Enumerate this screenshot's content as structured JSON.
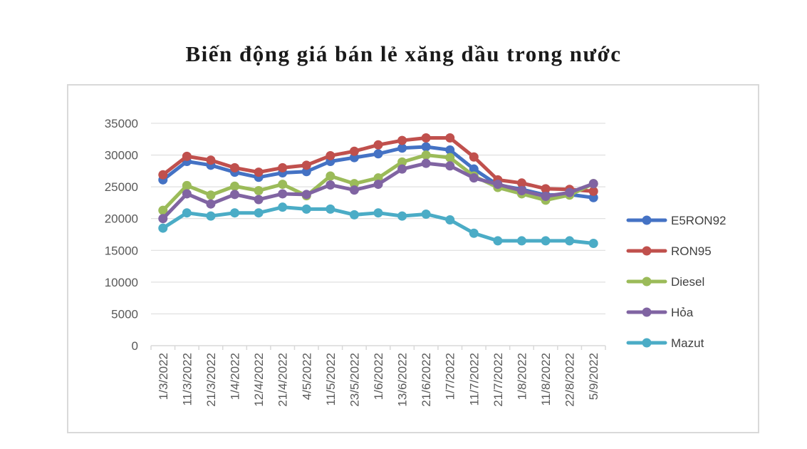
{
  "chart_data": {
    "type": "line",
    "title": "Biến động giá bán lẻ xăng dầu trong nước",
    "xlabel": "",
    "ylabel": "",
    "ylim": [
      0,
      35000
    ],
    "yticks": [
      0,
      5000,
      10000,
      15000,
      20000,
      25000,
      30000,
      35000
    ],
    "grid": true,
    "legend_position": "right",
    "categories": [
      "1/3/2022",
      "11/3/2022",
      "21/3/2022",
      "1/4/2022",
      "12/4/2022",
      "21/4/2022",
      "4/5/2022",
      "11/5/2022",
      "23/5/2022",
      "1/6/2022",
      "13/6/2022",
      "21/6/2022",
      "1/7/2022",
      "11/7/2022",
      "21/7/2022",
      "1/8/2022",
      "11/8/2022",
      "22/8/2022",
      "5/9/2022"
    ],
    "series": [
      {
        "name": "E5RON92",
        "color": "#4472c4",
        "values": [
          26100,
          29000,
          28400,
          27300,
          26500,
          27200,
          27400,
          29000,
          29600,
          30200,
          31100,
          31300,
          30800,
          27800,
          25300,
          24600,
          23700,
          23800,
          23300
        ]
      },
      {
        "name": "RON95",
        "color": "#c0504d",
        "values": [
          26900,
          29800,
          29200,
          28000,
          27300,
          28000,
          28400,
          29900,
          30600,
          31600,
          32300,
          32700,
          32700,
          29700,
          26100,
          25600,
          24700,
          24600,
          24300
        ]
      },
      {
        "name": "Diesel",
        "color": "#9bbb59",
        "values": [
          21300,
          25200,
          23700,
          25100,
          24400,
          25400,
          23600,
          26700,
          25500,
          26400,
          28900,
          30000,
          29600,
          26700,
          24900,
          23900,
          22900,
          23700,
          25500
        ]
      },
      {
        "name": "Hỏa",
        "color": "#8064a2",
        "values": [
          20000,
          23900,
          22300,
          23800,
          23000,
          23900,
          23800,
          25300,
          24500,
          25400,
          27800,
          28700,
          28300,
          26400,
          25400,
          24400,
          23500,
          24100,
          25500
        ]
      },
      {
        "name": "Mazut",
        "color": "#4bacc6",
        "values": [
          18500,
          20900,
          20400,
          20900,
          20900,
          21800,
          21500,
          21500,
          20600,
          20900,
          20400,
          20700,
          19800,
          17700,
          16500,
          16500,
          16500,
          16500,
          16100
        ]
      }
    ]
  }
}
